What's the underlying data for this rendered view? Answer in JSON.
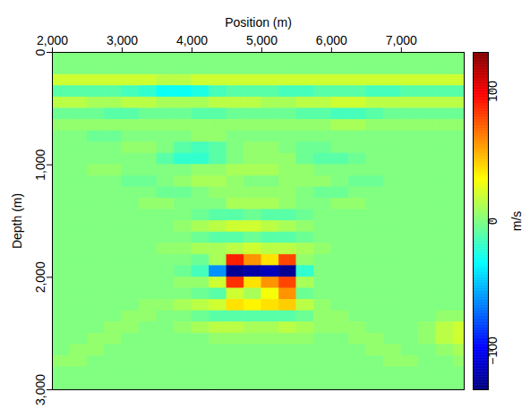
{
  "chart_data": {
    "type": "heatmap",
    "x_label": "Position (m)",
    "y_label": "Depth (m)",
    "xlim": [
      2000,
      7900
    ],
    "xticks": [
      2000,
      3000,
      4000,
      5000,
      6000,
      7000
    ],
    "ylim": [
      0,
      3000
    ],
    "yticks": [
      0,
      1000,
      2000,
      3000
    ],
    "x_bins": [
      2000,
      2250,
      2500,
      2750,
      3000,
      3250,
      3500,
      3750,
      4000,
      4250,
      4500,
      4750,
      5000,
      5250,
      5500,
      5750,
      6000,
      6250,
      6500,
      6750,
      7000,
      7250,
      7500,
      7750,
      7900
    ],
    "y_bins": [
      0,
      100,
      200,
      300,
      400,
      500,
      600,
      700,
      800,
      900,
      1000,
      1100,
      1200,
      1300,
      1400,
      1500,
      1600,
      1700,
      1800,
      1900,
      2000,
      2100,
      2200,
      2300,
      2400,
      2500,
      2600,
      2700,
      2800,
      2900,
      3000
    ],
    "cells": [
      [
        0,
        0,
        0,
        0,
        0,
        0,
        0,
        0,
        0,
        0,
        0,
        0,
        0,
        0,
        0,
        0,
        0,
        0,
        0,
        0,
        0,
        0,
        0,
        0
      ],
      [
        0,
        0,
        0,
        0,
        0,
        0,
        0,
        0,
        0,
        0,
        0,
        0,
        0,
        0,
        0,
        0,
        0,
        0,
        0,
        0,
        0,
        0,
        0,
        0
      ],
      [
        20,
        20,
        20,
        20,
        20,
        20,
        15,
        15,
        20,
        20,
        20,
        20,
        20,
        20,
        20,
        20,
        20,
        20,
        20,
        20,
        20,
        20,
        20,
        20
      ],
      [
        -10,
        -10,
        -10,
        -10,
        -15,
        -20,
        -30,
        -30,
        -25,
        -15,
        -10,
        -10,
        -10,
        -15,
        -15,
        -10,
        -10,
        -10,
        -15,
        -15,
        -10,
        -10,
        -10,
        -10
      ],
      [
        15,
        15,
        10,
        10,
        15,
        15,
        10,
        10,
        10,
        15,
        15,
        15,
        10,
        10,
        15,
        15,
        20,
        20,
        15,
        15,
        15,
        15,
        15,
        15
      ],
      [
        -5,
        -5,
        -5,
        -10,
        -10,
        -5,
        -5,
        -5,
        -10,
        -10,
        -5,
        -5,
        -5,
        -5,
        -10,
        -10,
        -15,
        -15,
        -10,
        -5,
        -5,
        -5,
        -5,
        -5
      ],
      [
        5,
        5,
        5,
        5,
        5,
        5,
        5,
        5,
        5,
        5,
        5,
        5,
        5,
        5,
        5,
        5,
        10,
        10,
        5,
        5,
        5,
        5,
        5,
        5
      ],
      [
        0,
        0,
        -5,
        -5,
        0,
        0,
        0,
        0,
        5,
        5,
        0,
        0,
        0,
        0,
        0,
        0,
        0,
        0,
        0,
        0,
        0,
        0,
        0,
        0
      ],
      [
        0,
        0,
        0,
        0,
        5,
        5,
        0,
        -10,
        -15,
        -10,
        0,
        5,
        5,
        0,
        -5,
        -5,
        0,
        0,
        0,
        0,
        0,
        0,
        0,
        0
      ],
      [
        0,
        0,
        0,
        0,
        0,
        0,
        -10,
        -20,
        -20,
        -10,
        0,
        5,
        5,
        5,
        -5,
        -10,
        -10,
        -5,
        0,
        0,
        0,
        0,
        0,
        0
      ],
      [
        0,
        0,
        5,
        5,
        0,
        0,
        0,
        0,
        5,
        5,
        10,
        10,
        10,
        5,
        5,
        0,
        0,
        0,
        0,
        0,
        0,
        0,
        0,
        0
      ],
      [
        0,
        0,
        0,
        0,
        -5,
        -5,
        0,
        5,
        10,
        10,
        5,
        0,
        0,
        5,
        5,
        5,
        0,
        -5,
        -5,
        0,
        0,
        0,
        0,
        0
      ],
      [
        0,
        0,
        0,
        0,
        0,
        0,
        -5,
        -5,
        0,
        5,
        5,
        5,
        5,
        5,
        0,
        -5,
        -5,
        0,
        0,
        0,
        0,
        0,
        0,
        0
      ],
      [
        0,
        0,
        0,
        0,
        0,
        5,
        5,
        0,
        0,
        0,
        10,
        10,
        10,
        5,
        0,
        0,
        5,
        5,
        0,
        0,
        0,
        0,
        0,
        0
      ],
      [
        0,
        0,
        0,
        0,
        0,
        0,
        0,
        0,
        -5,
        -10,
        -10,
        -5,
        -10,
        -10,
        -5,
        0,
        0,
        0,
        0,
        0,
        0,
        0,
        0,
        0
      ],
      [
        0,
        0,
        0,
        0,
        0,
        0,
        0,
        5,
        10,
        15,
        20,
        20,
        15,
        10,
        5,
        0,
        0,
        0,
        0,
        0,
        0,
        0,
        0,
        0
      ],
      [
        0,
        0,
        0,
        0,
        0,
        0,
        0,
        0,
        -5,
        -10,
        -10,
        -5,
        -10,
        -10,
        -5,
        0,
        0,
        0,
        0,
        0,
        0,
        0,
        0,
        0
      ],
      [
        0,
        0,
        0,
        0,
        0,
        0,
        5,
        5,
        10,
        10,
        15,
        20,
        15,
        15,
        10,
        5,
        0,
        0,
        0,
        0,
        0,
        0,
        0,
        0
      ],
      [
        0,
        0,
        0,
        0,
        0,
        0,
        0,
        0,
        -5,
        10,
        90,
        60,
        40,
        80,
        5,
        0,
        0,
        0,
        0,
        0,
        0,
        0,
        0,
        0
      ],
      [
        0,
        0,
        0,
        0,
        0,
        0,
        0,
        -5,
        -15,
        -60,
        -125,
        -120,
        -115,
        -125,
        -20,
        0,
        0,
        0,
        0,
        0,
        0,
        0,
        0,
        0
      ],
      [
        0,
        0,
        0,
        0,
        0,
        0,
        0,
        5,
        5,
        20,
        85,
        40,
        60,
        80,
        10,
        0,
        0,
        0,
        0,
        0,
        0,
        0,
        0,
        0
      ],
      [
        0,
        0,
        0,
        0,
        0,
        0,
        0,
        0,
        -5,
        -10,
        20,
        10,
        30,
        60,
        -5,
        0,
        0,
        0,
        0,
        0,
        0,
        0,
        0,
        0
      ],
      [
        0,
        0,
        0,
        0,
        0,
        5,
        5,
        10,
        15,
        20,
        40,
        35,
        40,
        45,
        15,
        5,
        0,
        0,
        0,
        0,
        0,
        0,
        0,
        0
      ],
      [
        0,
        0,
        0,
        0,
        5,
        5,
        0,
        0,
        -5,
        -10,
        -10,
        -10,
        -10,
        -10,
        -5,
        5,
        5,
        0,
        0,
        0,
        0,
        0,
        5,
        5
      ],
      [
        0,
        0,
        0,
        5,
        5,
        0,
        0,
        5,
        10,
        15,
        15,
        10,
        10,
        15,
        10,
        5,
        5,
        5,
        0,
        0,
        0,
        5,
        15,
        20
      ],
      [
        0,
        0,
        5,
        5,
        0,
        0,
        0,
        0,
        0,
        5,
        5,
        5,
        5,
        5,
        5,
        0,
        0,
        5,
        5,
        0,
        0,
        5,
        15,
        20
      ],
      [
        0,
        5,
        5,
        0,
        0,
        0,
        0,
        0,
        0,
        0,
        0,
        0,
        0,
        0,
        0,
        0,
        0,
        0,
        5,
        5,
        0,
        0,
        5,
        10
      ],
      [
        5,
        5,
        0,
        0,
        0,
        0,
        0,
        0,
        0,
        0,
        0,
        0,
        0,
        0,
        0,
        0,
        0,
        0,
        0,
        5,
        5,
        0,
        0,
        5
      ],
      [
        0,
        0,
        0,
        0,
        0,
        0,
        0,
        0,
        0,
        0,
        0,
        0,
        0,
        0,
        0,
        0,
        0,
        0,
        0,
        0,
        0,
        0,
        0,
        0
      ],
      [
        0,
        0,
        0,
        0,
        0,
        0,
        0,
        0,
        0,
        0,
        0,
        0,
        0,
        0,
        0,
        0,
        0,
        0,
        0,
        0,
        0,
        0,
        0,
        0
      ]
    ],
    "colorbar": {
      "range": [
        -130,
        130
      ],
      "ticks": [
        -100,
        0,
        100
      ],
      "label": "m/s"
    }
  }
}
